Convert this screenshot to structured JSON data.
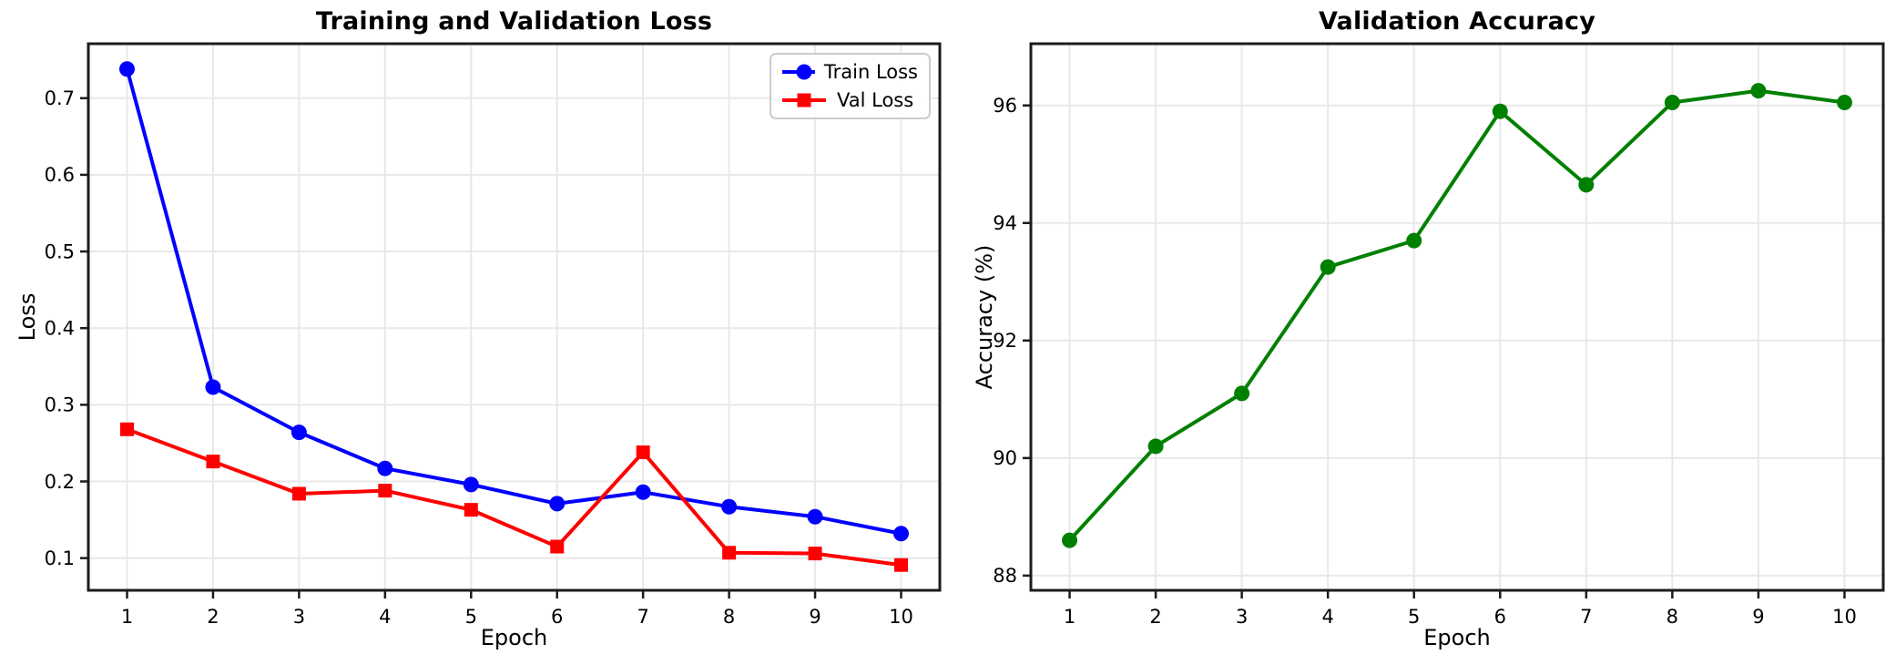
{
  "figure": {
    "background": "#ffffff",
    "axis_color": "#1c1c1c",
    "grid_color": "#e8e8e8",
    "text_color": "#000000",
    "train_color": "#0000ff",
    "val_color": "#ff0000",
    "accuracy_color": "#008000"
  },
  "chart_data": [
    {
      "type": "line",
      "title": "Training and Validation Loss",
      "xlabel": "Epoch",
      "ylabel": "Loss",
      "x": [
        1,
        2,
        3,
        4,
        5,
        6,
        7,
        8,
        9,
        10
      ],
      "xtick_labels": [
        "1",
        "2",
        "3",
        "4",
        "5",
        "6",
        "7",
        "8",
        "9",
        "10"
      ],
      "yticks": [
        0.1,
        0.2,
        0.3,
        0.4,
        0.5,
        0.6,
        0.7
      ],
      "ytick_labels": [
        "0.1",
        "0.2",
        "0.3",
        "0.4",
        "0.5",
        "0.6",
        "0.7"
      ],
      "xlim": [
        0.55,
        10.45
      ],
      "ylim": [
        0.058,
        0.771
      ],
      "grid": true,
      "legend_position": "upper right",
      "series": [
        {
          "name": "Train Loss",
          "color": "#0000ff",
          "marker": "circle",
          "values": [
            0.738,
            0.323,
            0.264,
            0.217,
            0.196,
            0.171,
            0.186,
            0.167,
            0.154,
            0.132
          ]
        },
        {
          "name": "Val Loss",
          "color": "#ff0000",
          "marker": "square",
          "values": [
            0.268,
            0.226,
            0.184,
            0.188,
            0.163,
            0.115,
            0.238,
            0.107,
            0.106,
            0.091
          ]
        }
      ]
    },
    {
      "type": "line",
      "title": "Validation Accuracy",
      "xlabel": "Epoch",
      "ylabel": "Accuracy (%)",
      "x": [
        1,
        2,
        3,
        4,
        5,
        6,
        7,
        8,
        9,
        10
      ],
      "xtick_labels": [
        "1",
        "2",
        "3",
        "4",
        "5",
        "6",
        "7",
        "8",
        "9",
        "10"
      ],
      "yticks": [
        88,
        90,
        92,
        94,
        96
      ],
      "ytick_labels": [
        "88",
        "90",
        "92",
        "94",
        "96"
      ],
      "xlim": [
        0.55,
        10.45
      ],
      "ylim": [
        87.75,
        97.05
      ],
      "grid": true,
      "legend_position": null,
      "series": [
        {
          "name": "Validation Accuracy",
          "color": "#008000",
          "marker": "circle",
          "values": [
            88.6,
            90.2,
            91.1,
            93.25,
            93.7,
            95.9,
            94.65,
            96.05,
            96.25,
            96.05
          ]
        }
      ]
    }
  ]
}
